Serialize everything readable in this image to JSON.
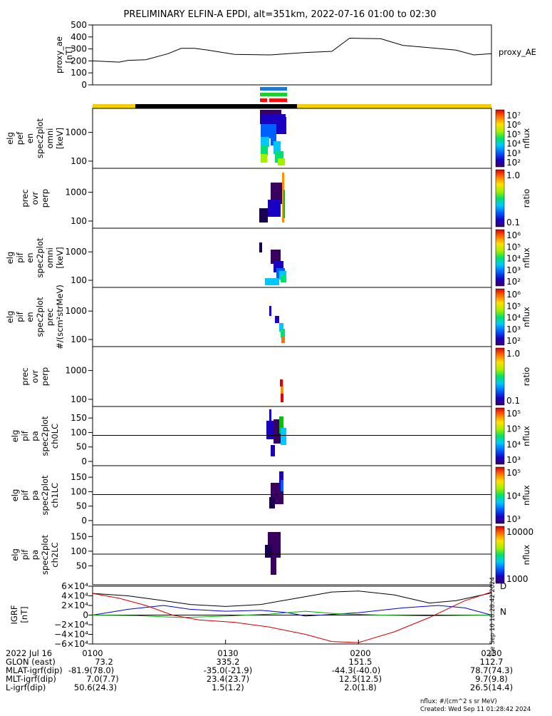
{
  "title": "PRELIMINARY ELFIN-A EPDI, alt=351km, 2022-07-16 01:00 to 02:30",
  "chart_data": {
    "type": "line",
    "x_range": [
      "2022-07-16 01:00",
      "2022-07-16 02:30"
    ],
    "panels": [
      {
        "id": "proxy_ae",
        "ylabel": [
          "proxy_ae",
          "[nT]"
        ],
        "right_label": "proxy_AE",
        "ylim": [
          0,
          500
        ],
        "yticks": [
          0,
          100,
          200,
          300,
          400,
          500
        ],
        "series": [
          {
            "x": [
              "01:00",
              "01:03",
              "01:06",
              "01:08",
              "01:12",
              "01:17",
              "01:20",
              "01:23",
              "01:26",
              "01:32",
              "01:40",
              "01:48",
              "01:54",
              "01:58",
              "02:05",
              "02:10",
              "02:16",
              "02:22",
              "02:26",
              "02:30"
            ],
            "y": [
              200,
              195,
              190,
              205,
              210,
              260,
              305,
              305,
              290,
              255,
              250,
              270,
              280,
              390,
              385,
              330,
              310,
              290,
              250,
              260
            ]
          }
        ]
      },
      {
        "id": "elg_pef_en_spec2plot_omni",
        "ylabel": [
          "elg",
          "pef",
          "en",
          "spec2plot",
          "omni",
          "[keV]"
        ],
        "yticks": [
          "100",
          "1000"
        ],
        "colorbar": {
          "label": "nflux",
          "ticks": [
            "10⁷",
            "10⁶",
            "10⁵",
            "10⁴",
            "10³",
            "10²"
          ]
        }
      },
      {
        "id": "prec_ovr_perp_e",
        "ylabel": [
          "prec",
          "ovr",
          "perp"
        ],
        "yticks": [
          "100",
          "1000"
        ],
        "colorbar": {
          "label": "ratio",
          "ticks": [
            "1.0",
            "0.1"
          ]
        }
      },
      {
        "id": "elg_pif_en_spec2plot_omni",
        "ylabel": [
          "elg",
          "pif",
          "en",
          "spec2plot",
          "omni",
          "[keV]"
        ],
        "yticks": [
          "100",
          "1000"
        ],
        "colorbar": {
          "label": "nflux",
          "ticks": [
            "10⁶",
            "10⁵",
            "10⁴",
            "10³",
            "10²"
          ]
        }
      },
      {
        "id": "elg_pif_en_spec2plot_prec",
        "ylabel": [
          "elg",
          "pif",
          "en",
          "spec2plot",
          "prec",
          "#/(scm²strMeV)"
        ],
        "yticks": [
          "100",
          "1000"
        ],
        "colorbar": {
          "label": "nflux",
          "ticks": [
            "10⁶",
            "10⁵",
            "10⁴",
            "10³",
            "10²"
          ]
        }
      },
      {
        "id": "prec_ovr_perp_i",
        "ylabel": [
          "prec",
          "ovr",
          "perp"
        ],
        "yticks": [
          "100",
          "1000"
        ],
        "colorbar": {
          "label": "ratio",
          "ticks": [
            "1.0",
            "0.1"
          ]
        }
      },
      {
        "id": "elg_pif_pa_ch0LC",
        "ylabel": [
          "elg",
          "pif",
          "pa",
          "spec2plot",
          "ch0LC"
        ],
        "yticks": [
          "0",
          "50",
          "100",
          "150"
        ],
        "colorbar": {
          "label": "nflux",
          "ticks": [
            "10⁵",
            "10⁵",
            "10⁴",
            "10³"
          ]
        }
      },
      {
        "id": "elg_pif_pa_ch1LC",
        "ylabel": [
          "elg",
          "pif",
          "pa",
          "spec2plot",
          "ch1LC"
        ],
        "yticks": [
          "0",
          "50",
          "100",
          "150"
        ],
        "colorbar": {
          "label": "nflux",
          "ticks": [
            "10⁵",
            "10⁴",
            "10³"
          ]
        }
      },
      {
        "id": "elg_pif_pa_ch2LC",
        "ylabel": [
          "elg",
          "pif",
          "pa",
          "spec2plot",
          "ch2LC"
        ],
        "yticks": [
          "50",
          "100",
          "150"
        ],
        "colorbar": {
          "label": "nflux",
          "ticks": [
            "10000",
            "1000"
          ]
        }
      },
      {
        "id": "igrf",
        "ylabel": [
          "IGRF",
          "[nT]"
        ],
        "ylim": [
          -60000,
          60000
        ],
        "yticks": [
          "6×10⁴",
          "4×10⁴",
          "2×10⁴",
          "0",
          "−2×10⁴",
          "−4×10⁴",
          "−6×10⁴"
        ],
        "right_labels": [
          "D",
          "N"
        ],
        "series": [
          {
            "name": "black",
            "color": "#000000",
            "x": [
              "01:00",
              "01:08",
              "01:16",
              "01:22",
              "01:30",
              "01:38",
              "01:46",
              "01:54",
              "02:00",
              "02:08",
              "02:16",
              "02:22",
              "02:30"
            ],
            "y": [
              45000,
              40000,
              30000,
              22000,
              18000,
              22000,
              35000,
              48000,
              50000,
              42000,
              25000,
              30000,
              46000
            ]
          },
          {
            "name": "blue",
            "color": "#0000cc",
            "x": [
              "01:00",
              "01:08",
              "01:16",
              "01:22",
              "01:30",
              "01:38",
              "01:44",
              "01:48",
              "02:00",
              "02:10",
              "02:18",
              "02:24",
              "02:30"
            ],
            "y": [
              0,
              12000,
              20000,
              12000,
              8000,
              10000,
              5000,
              -2000,
              5000,
              15000,
              20000,
              15000,
              0
            ]
          },
          {
            "name": "green",
            "color": "#00aa00",
            "x": [
              "01:00",
              "01:10",
              "01:20",
              "01:30",
              "01:40",
              "01:48",
              "01:55",
              "02:05",
              "02:15",
              "02:30"
            ],
            "y": [
              0,
              -1000,
              -5000,
              -2000,
              2000,
              8000,
              3000,
              0,
              -1500,
              0
            ]
          },
          {
            "name": "red",
            "color": "#cc0000",
            "x": [
              "01:00",
              "01:06",
              "01:12",
              "01:18",
              "01:24",
              "01:32",
              "01:40",
              "01:48",
              "01:54",
              "02:00",
              "02:08",
              "02:16",
              "02:24",
              "02:30"
            ],
            "y": [
              45000,
              35000,
              20000,
              0,
              -10000,
              -15000,
              -25000,
              -40000,
              -55000,
              -57000,
              -35000,
              -5000,
              30000,
              48000
            ]
          }
        ]
      }
    ]
  },
  "footer": {
    "rows": [
      {
        "label": "2022 Jul 16",
        "values": [
          "0100",
          "0130",
          "0200",
          "0230"
        ]
      },
      {
        "label": "GLON (east)",
        "values": [
          "73.2",
          "335.2",
          "151.5",
          "112.7"
        ]
      },
      {
        "label": "MLAT-igrf(dip)",
        "values": [
          "-81.9(78.0)",
          "-35.0(-21.9)",
          "-44.3(-40.0)",
          "78.7(74.3)"
        ]
      },
      {
        "label": "MLT-igrf(dip)",
        "values": [
          "7.0(7.7)",
          "23.4(23.7)",
          "12.5(12.5)",
          "9.7(9.8)"
        ]
      },
      {
        "label": "L-igrf(dip)",
        "values": [
          "50.6(24.3)",
          "1.5(1.2)",
          "2.0(1.8)",
          "26.5(14.4)"
        ]
      }
    ],
    "units_note": "nflux: #/(cm^2 s sr MeV)",
    "created": "Created: Wed Sep 11 01:28:42 2024",
    "side_stamp": "Tue Sep 10 18:28:42 2024"
  },
  "colors": {
    "bar_yellow": "#f5d000",
    "bar_black": "#000000",
    "ind_blue": "#1e78d8",
    "ind_green": "#22cc33",
    "ind_red": "#ee1111"
  }
}
